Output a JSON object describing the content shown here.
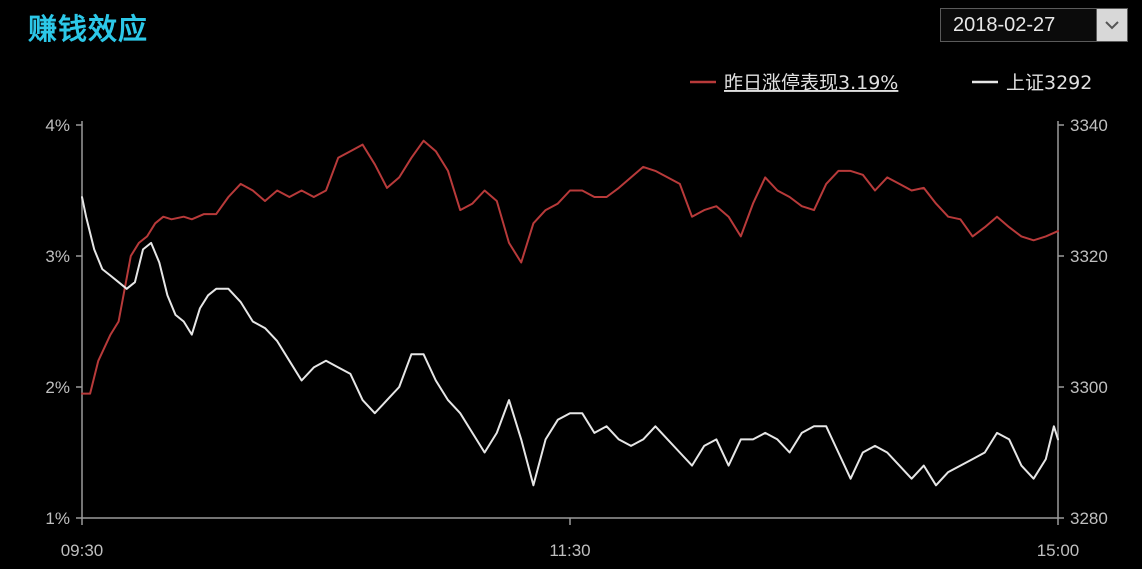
{
  "header": {
    "title": "赚钱效应",
    "date": "2018-02-27"
  },
  "colors": {
    "title": "#2cc8e8",
    "series_limit_up": "#b83a3a",
    "series_sh_index": "#e6e6e6",
    "axis": "#9a9a9a",
    "background": "#000000"
  },
  "chart_data": {
    "type": "line",
    "title": "赚钱效应",
    "x_ticks": [
      "09:30",
      "11:30",
      "15:00"
    ],
    "x_range_minutes": [
      0,
      240
    ],
    "y_left_ticks": [
      "4%",
      "3%",
      "2%",
      "1%"
    ],
    "y_left_range": [
      1,
      4
    ],
    "y_right_ticks": [
      "3340",
      "3320",
      "3300",
      "3280"
    ],
    "y_right_range": [
      3280,
      3340
    ],
    "grid": false,
    "legend_position": "top-right",
    "series": [
      {
        "name": "昨日涨停表现3.19%",
        "axis": "left",
        "color": "#b83a3a",
        "x_minutes": [
          0,
          2,
          4,
          7,
          9,
          12,
          14,
          16,
          18,
          20,
          22,
          25,
          27,
          30,
          33,
          36,
          39,
          42,
          45,
          48,
          51,
          54,
          57,
          60,
          63,
          66,
          69,
          72,
          75,
          78,
          81,
          84,
          87,
          90,
          93,
          96,
          99,
          102,
          105,
          108,
          111,
          114,
          117,
          120,
          123,
          126,
          129,
          132,
          135,
          138,
          141,
          144,
          147,
          150,
          153,
          156,
          159,
          162,
          165,
          168,
          171,
          174,
          177,
          180,
          183,
          186,
          189,
          192,
          195,
          198,
          201,
          204,
          207,
          210,
          213,
          216,
          219,
          222,
          225,
          228,
          231,
          234,
          237,
          240
        ],
        "values": [
          1.95,
          1.95,
          2.2,
          2.4,
          2.5,
          3.0,
          3.1,
          3.15,
          3.25,
          3.3,
          3.28,
          3.3,
          3.28,
          3.32,
          3.32,
          3.45,
          3.55,
          3.5,
          3.42,
          3.5,
          3.45,
          3.5,
          3.45,
          3.5,
          3.75,
          3.8,
          3.85,
          3.7,
          3.52,
          3.6,
          3.75,
          3.88,
          3.8,
          3.65,
          3.35,
          3.4,
          3.5,
          3.42,
          3.1,
          2.95,
          3.25,
          3.35,
          3.4,
          3.5,
          3.5,
          3.45,
          3.45,
          3.52,
          3.6,
          3.68,
          3.65,
          3.6,
          3.55,
          3.3,
          3.35,
          3.38,
          3.3,
          3.15,
          3.4,
          3.6,
          3.5,
          3.45,
          3.38,
          3.35,
          3.55,
          3.65,
          3.65,
          3.62,
          3.5,
          3.6,
          3.55,
          3.5,
          3.52,
          3.4,
          3.3,
          3.28,
          3.15,
          3.22,
          3.3,
          3.22,
          3.15,
          3.12,
          3.15,
          3.19
        ]
      },
      {
        "name": "上证3292",
        "axis": "right",
        "color": "#e6e6e6",
        "x_minutes": [
          0,
          1,
          3,
          5,
          7,
          9,
          11,
          13,
          15,
          17,
          19,
          21,
          23,
          25,
          27,
          29,
          31,
          33,
          36,
          39,
          42,
          45,
          48,
          51,
          54,
          57,
          60,
          63,
          66,
          69,
          72,
          75,
          78,
          81,
          84,
          87,
          90,
          93,
          96,
          99,
          102,
          105,
          108,
          111,
          114,
          117,
          120,
          123,
          126,
          129,
          132,
          135,
          138,
          141,
          144,
          147,
          150,
          153,
          156,
          159,
          162,
          165,
          168,
          171,
          174,
          177,
          180,
          183,
          186,
          189,
          192,
          195,
          198,
          201,
          204,
          207,
          210,
          213,
          216,
          219,
          222,
          225,
          228,
          231,
          234,
          237,
          239,
          240
        ],
        "values": [
          3329,
          3326,
          3321,
          3318,
          3317,
          3316,
          3315,
          3316,
          3321,
          3322,
          3319,
          3314,
          3311,
          3310,
          3308,
          3312,
          3314,
          3315,
          3315,
          3313,
          3310,
          3309,
          3307,
          3304,
          3301,
          3303,
          3304,
          3303,
          3302,
          3298,
          3296,
          3298,
          3300,
          3305,
          3305,
          3301,
          3298,
          3296,
          3293,
          3290,
          3293,
          3298,
          3292,
          3285,
          3292,
          3295,
          3296,
          3296,
          3293,
          3294,
          3292,
          3291,
          3292,
          3294,
          3292,
          3290,
          3288,
          3291,
          3292,
          3288,
          3292,
          3292,
          3293,
          3292,
          3290,
          3293,
          3294,
          3294,
          3290,
          3286,
          3290,
          3291,
          3290,
          3288,
          3286,
          3288,
          3285,
          3287,
          3288,
          3289,
          3290,
          3293,
          3292,
          3288,
          3286,
          3289,
          3294,
          3292
        ]
      }
    ]
  }
}
